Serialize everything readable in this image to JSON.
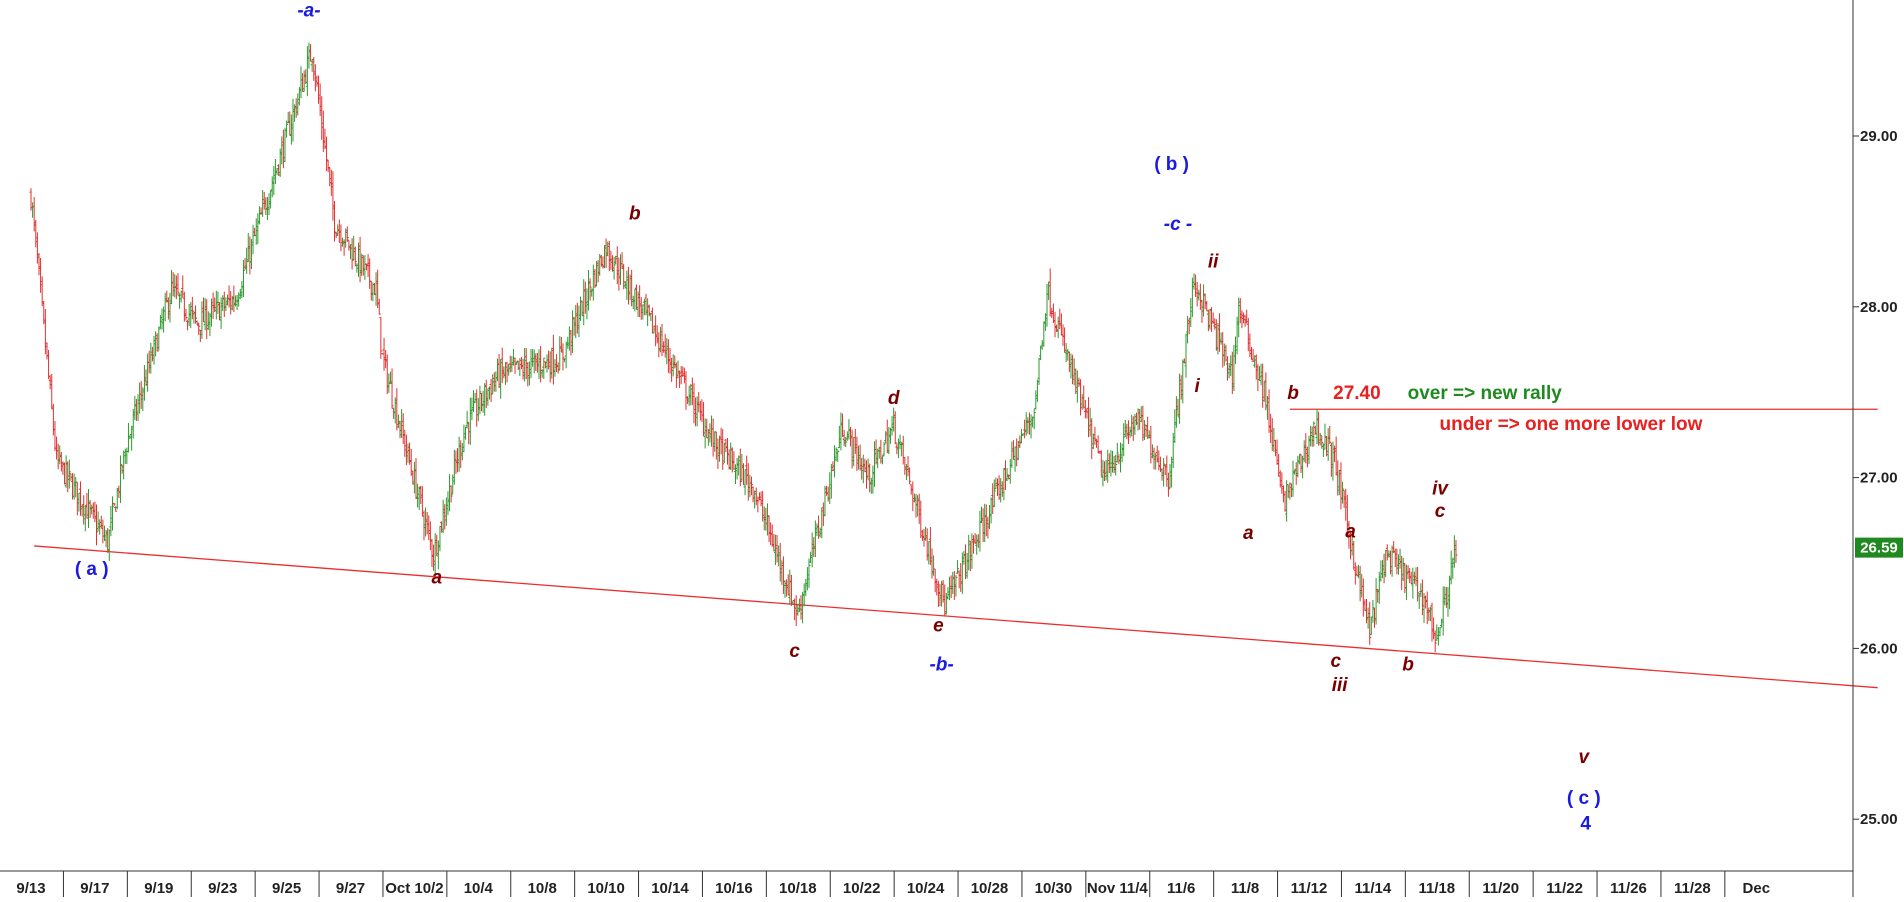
{
  "chart_data": {
    "type": "ohlc",
    "title": "",
    "xlabel": "",
    "ylabel": "",
    "ylim": [
      24.65,
      29.8
    ],
    "y_ticks": [
      25.0,
      26.0,
      27.0,
      28.0,
      29.0
    ],
    "y_tick_labels": [
      "25.00",
      "26.00",
      "27.00",
      "28.00",
      "29.00"
    ],
    "x_tick_labels": [
      "9/13",
      "9/17",
      "9/19",
      "9/23",
      "9/25",
      "9/27",
      "Oct 10/2",
      "10/4",
      "10/8",
      "10/10",
      "10/14",
      "10/16",
      "10/18",
      "10/22",
      "10/24",
      "10/28",
      "10/30",
      "Nov 11/4",
      "11/6",
      "11/8",
      "11/12",
      "11/14",
      "11/18",
      "11/20",
      "11/22",
      "11/26",
      "11/28",
      "Dec"
    ],
    "last_price": 26.59,
    "last_price_label": "26.59",
    "grid": false,
    "up_color": "#2e9a2e",
    "down_color": "#e03030",
    "price_path": [
      {
        "slot": 0,
        "price": 28.65
      },
      {
        "slot": 0.4,
        "price": 27.1
      },
      {
        "slot": 1.2,
        "price": 26.62
      },
      {
        "slot": 1.5,
        "price": 27.2
      },
      {
        "slot": 2.2,
        "price": 28.1
      },
      {
        "slot": 2.6,
        "price": 27.9
      },
      {
        "slot": 3.2,
        "price": 28.05
      },
      {
        "slot": 4.0,
        "price": 29.0
      },
      {
        "slot": 4.4,
        "price": 29.5
      },
      {
        "slot": 4.75,
        "price": 28.5
      },
      {
        "slot": 5.4,
        "price": 28.1
      },
      {
        "slot": 5.5,
        "price": 27.7
      },
      {
        "slot": 6.3,
        "price": 26.55
      },
      {
        "slot": 6.8,
        "price": 27.3
      },
      {
        "slot": 7.3,
        "price": 27.6
      },
      {
        "slot": 8.3,
        "price": 27.7
      },
      {
        "slot": 9.0,
        "price": 28.35
      },
      {
        "slot": 9.7,
        "price": 27.9
      },
      {
        "slot": 10.7,
        "price": 27.2
      },
      {
        "slot": 11.3,
        "price": 26.95
      },
      {
        "slot": 12.0,
        "price": 26.2
      },
      {
        "slot": 12.7,
        "price": 27.3
      },
      {
        "slot": 13.1,
        "price": 27.0
      },
      {
        "slot": 13.5,
        "price": 27.3
      },
      {
        "slot": 14.3,
        "price": 26.25
      },
      {
        "slot": 15.0,
        "price": 26.8
      },
      {
        "slot": 15.7,
        "price": 27.4
      },
      {
        "slot": 15.9,
        "price": 28.1
      },
      {
        "slot": 16.3,
        "price": 27.6
      },
      {
        "slot": 16.8,
        "price": 27.0
      },
      {
        "slot": 17.3,
        "price": 27.35
      },
      {
        "slot": 17.8,
        "price": 27.0
      },
      {
        "slot": 18.2,
        "price": 28.15
      },
      {
        "slot": 18.8,
        "price": 27.6
      },
      {
        "slot": 18.9,
        "price": 28.0
      },
      {
        "slot": 19.3,
        "price": 27.5
      },
      {
        "slot": 19.6,
        "price": 26.85
      },
      {
        "slot": 20.1,
        "price": 27.3
      },
      {
        "slot": 20.4,
        "price": 27.1
      },
      {
        "slot": 20.8,
        "price": 26.35
      },
      {
        "slot": 20.95,
        "price": 26.1
      },
      {
        "slot": 21.2,
        "price": 26.55
      },
      {
        "slot": 21.8,
        "price": 26.3
      },
      {
        "slot": 22.0,
        "price": 26.05
      },
      {
        "slot": 22.3,
        "price": 26.59
      }
    ],
    "trendlines": [
      {
        "label": "",
        "x1_slot": 0.05,
        "y1": 26.6,
        "x2_slot": 28.9,
        "y2": 25.77,
        "color": "#e83030"
      },
      {
        "label": "",
        "x1_slot": 19.7,
        "y1": 27.4,
        "x2_slot": 28.9,
        "y2": 27.4,
        "color": "#e83030"
      }
    ],
    "annotations": [
      {
        "text": "-a-",
        "slot": 4.35,
        "price": 29.7,
        "color": "#1a1ae0",
        "style": "italic"
      },
      {
        "text": "( a )",
        "slot": 0.95,
        "price": 26.43,
        "color": "#1a1ae0",
        "style": "normal"
      },
      {
        "text": "a",
        "slot": 6.35,
        "price": 26.38,
        "color": "#7a0000",
        "style": "italic"
      },
      {
        "text": "b",
        "slot": 9.45,
        "price": 28.51,
        "color": "#7a0000",
        "style": "italic"
      },
      {
        "text": "c",
        "slot": 11.95,
        "price": 25.95,
        "color": "#7a0000",
        "style": "italic"
      },
      {
        "text": "d",
        "slot": 13.5,
        "price": 27.43,
        "color": "#7a0000",
        "style": "italic"
      },
      {
        "text": "e",
        "slot": 14.2,
        "price": 26.1,
        "color": "#7a0000",
        "style": "italic"
      },
      {
        "text": "-b-",
        "slot": 14.25,
        "price": 25.87,
        "color": "#1a1ae0",
        "style": "italic"
      },
      {
        "text": "( b )",
        "slot": 17.85,
        "price": 28.8,
        "color": "#1a1ae0",
        "style": "normal"
      },
      {
        "text": "-c -",
        "slot": 17.95,
        "price": 28.45,
        "color": "#1a1ae0",
        "style": "italic"
      },
      {
        "text": "ii",
        "slot": 18.5,
        "price": 28.23,
        "color": "#7a0000",
        "style": "italic"
      },
      {
        "text": "i",
        "slot": 18.25,
        "price": 27.5,
        "color": "#7a0000",
        "style": "italic"
      },
      {
        "text": "b",
        "slot": 19.75,
        "price": 27.46,
        "color": "#7a0000",
        "style": "italic"
      },
      {
        "text": "a",
        "slot": 19.05,
        "price": 26.64,
        "color": "#7a0000",
        "style": "italic"
      },
      {
        "text": "a",
        "slot": 20.65,
        "price": 26.65,
        "color": "#7a0000",
        "style": "italic"
      },
      {
        "text": "c",
        "slot": 20.42,
        "price": 25.89,
        "color": "#7a0000",
        "style": "italic"
      },
      {
        "text": "iii",
        "slot": 20.48,
        "price": 25.75,
        "color": "#7a0000",
        "style": "italic"
      },
      {
        "text": "b",
        "slot": 21.55,
        "price": 25.87,
        "color": "#7a0000",
        "style": "italic"
      },
      {
        "text": "iv",
        "slot": 22.05,
        "price": 26.9,
        "color": "#7a0000",
        "style": "italic"
      },
      {
        "text": "c",
        "slot": 22.05,
        "price": 26.77,
        "color": "#7a0000",
        "style": "italic"
      },
      {
        "text": "v",
        "slot": 24.3,
        "price": 25.33,
        "color": "#7a0000",
        "style": "italic"
      },
      {
        "text": "( c )",
        "slot": 24.3,
        "price": 25.09,
        "color": "#1a1ae0",
        "style": "normal"
      },
      {
        "text": "4",
        "slot": 24.33,
        "price": 24.94,
        "color": "#1a1ae0",
        "style": "normal"
      },
      {
        "text": "27.40",
        "slot": 20.75,
        "price": 27.46,
        "color": "#e82020",
        "style": "normal"
      },
      {
        "text": "over => new rally",
        "slot": 22.75,
        "price": 27.46,
        "color": "#1f8a1f",
        "style": "normal"
      },
      {
        "text": "under => one more lower low",
        "slot": 24.1,
        "price": 27.28,
        "color": "#e82020",
        "style": "normal"
      }
    ]
  }
}
